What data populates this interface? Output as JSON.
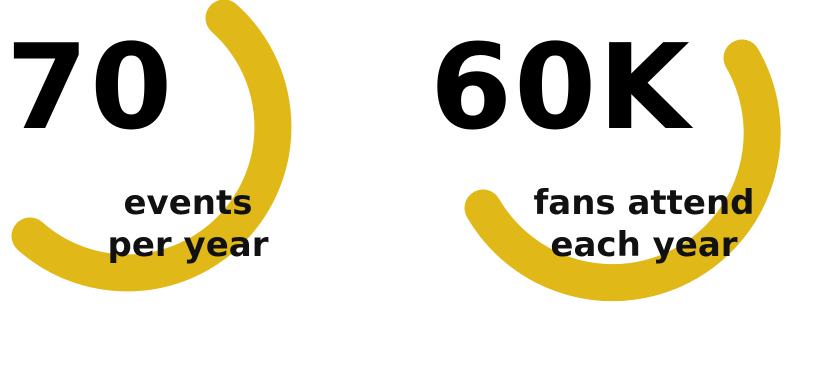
{
  "colors": {
    "accent": "#E0B818",
    "text": "#000000",
    "background": "#FFFFFF"
  },
  "stats": [
    {
      "value": "70",
      "caption_line1": "events",
      "caption_line2": "per year"
    },
    {
      "value": "60K",
      "caption_line1": "fans attend",
      "caption_line2": "each year"
    }
  ]
}
